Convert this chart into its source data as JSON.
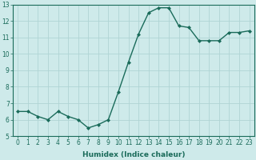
{
  "x": [
    0,
    1,
    2,
    3,
    4,
    5,
    6,
    7,
    8,
    9,
    10,
    11,
    12,
    13,
    14,
    15,
    16,
    17,
    18,
    19,
    20,
    21,
    22,
    23
  ],
  "y": [
    6.5,
    6.5,
    6.2,
    6.0,
    6.5,
    6.2,
    6.0,
    5.5,
    5.7,
    6.0,
    7.7,
    9.5,
    11.2,
    12.5,
    12.8,
    12.8,
    11.7,
    11.6,
    10.8,
    10.8,
    10.8,
    11.3,
    11.3,
    11.4
  ],
  "line_color": "#1a6b5a",
  "marker": "D",
  "marker_size": 2.0,
  "bg_color": "#ceeaea",
  "grid_color": "#b0d4d4",
  "xlabel": "Humidex (Indice chaleur)",
  "ylim": [
    5,
    13
  ],
  "xlim": [
    -0.5,
    23.5
  ],
  "yticks": [
    5,
    6,
    7,
    8,
    9,
    10,
    11,
    12,
    13
  ],
  "xticks": [
    0,
    1,
    2,
    3,
    4,
    5,
    6,
    7,
    8,
    9,
    10,
    11,
    12,
    13,
    14,
    15,
    16,
    17,
    18,
    19,
    20,
    21,
    22,
    23
  ],
  "tick_fontsize": 5.5,
  "xlabel_fontsize": 6.5,
  "line_width": 1.0
}
